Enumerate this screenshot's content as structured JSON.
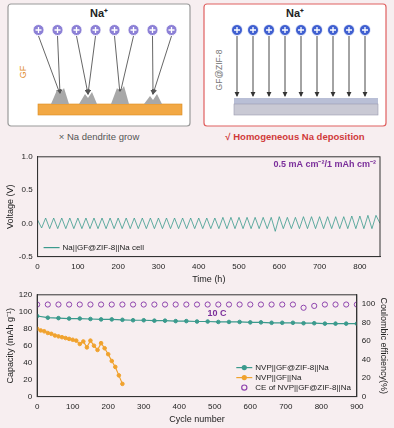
{
  "diagram": {
    "panels": [
      {
        "ion": "Na⁺",
        "substrate": "GF",
        "caption": "× Na dendrite grow"
      },
      {
        "ion": "Na⁺",
        "substrate": "GF@ZIF-8",
        "caption": "√ Homogeneous Na deposition"
      }
    ]
  },
  "chart_data": [
    {
      "type": "line",
      "xlabel": "Time (h)",
      "ylabel": "Voltage (V)",
      "annotation": "0.5 mA cm⁻²/1 mAh cm⁻²",
      "xlim": [
        0,
        850
      ],
      "xticks": [
        0,
        100,
        200,
        300,
        400,
        500,
        600,
        700,
        800
      ],
      "ylim": [
        -0.5,
        1
      ],
      "yticks": [
        -0.5,
        {
          "value": 0,
          "label": "0.0"
        },
        0.5,
        {
          "value": 1,
          "label": "1.0"
        }
      ],
      "grid": false,
      "legend": "lower left",
      "series": [
        {
          "name": "Na||GF@ZIF-8||Na cell",
          "color": "#3b9a8d",
          "marker": "none",
          "line_style": "solid",
          "x": [
            0,
            10,
            20,
            30,
            40,
            50,
            60,
            70,
            80,
            90,
            100,
            110,
            120,
            130,
            140,
            150,
            160,
            170,
            180,
            190,
            200,
            210,
            220,
            230,
            240,
            250,
            260,
            270,
            280,
            290,
            300,
            310,
            320,
            330,
            340,
            350,
            360,
            370,
            380,
            390,
            400,
            410,
            420,
            430,
            440,
            450,
            460,
            470,
            480,
            490,
            500,
            510,
            520,
            530,
            540,
            550,
            560,
            570,
            580,
            590,
            600,
            610,
            620,
            630,
            640,
            650,
            660,
            670,
            680,
            690,
            700,
            710,
            720,
            730,
            740,
            750,
            760,
            770,
            780,
            790,
            800,
            810,
            820,
            830,
            840,
            850
          ],
          "values": [
            0.05,
            -0.07,
            0.08,
            -0.08,
            0.08,
            -0.08,
            0.08,
            -0.08,
            0.08,
            -0.08,
            0.08,
            -0.08,
            0.08,
            -0.08,
            0.08,
            -0.08,
            0.08,
            -0.08,
            0.08,
            -0.08,
            0.08,
            -0.08,
            0.08,
            -0.08,
            0.08,
            -0.08,
            0.08,
            -0.08,
            0.08,
            -0.08,
            0.08,
            -0.08,
            0.08,
            -0.08,
            0.08,
            -0.08,
            0.08,
            -0.08,
            0.08,
            -0.08,
            0.08,
            -0.08,
            0.08,
            -0.08,
            0.08,
            -0.08,
            0.09,
            -0.08,
            0.09,
            -0.08,
            0.09,
            -0.08,
            0.09,
            -0.08,
            0.09,
            -0.08,
            0.09,
            -0.08,
            0.09,
            -0.12,
            0.1,
            -0.08,
            0.09,
            -0.08,
            0.09,
            -0.08,
            0.1,
            -0.08,
            0.1,
            -0.08,
            0.1,
            -0.08,
            0.1,
            -0.08,
            0.1,
            -0.08,
            0.1,
            -0.08,
            0.11,
            -0.08,
            0.11,
            -0.08,
            0.12,
            -0.08,
            0.12,
            0.0
          ]
        }
      ]
    },
    {
      "type": "line",
      "annotation": "10 C",
      "xlabel": "Cycle number",
      "ylabel": "Capacity (mAh g⁻¹)",
      "y2label": "Coulombic efficiency(%)",
      "xlim": [
        0,
        900
      ],
      "xticks": [
        0,
        100,
        200,
        300,
        400,
        500,
        600,
        700,
        800,
        900
      ],
      "ylim": [
        0,
        120
      ],
      "yticks": [
        0,
        20,
        40,
        60,
        80,
        100,
        120
      ],
      "y2lim": [
        0,
        110
      ],
      "y2ticks": [
        0,
        20,
        40,
        60,
        80,
        100
      ],
      "grid": false,
      "legend": "lower right",
      "series": [
        {
          "name": "NVP||GF@ZIF-8||Na",
          "color": "#3b9a8d",
          "marker": "circle",
          "line_style": "solid",
          "x": [
            0,
            30,
            60,
            90,
            120,
            150,
            180,
            210,
            240,
            270,
            300,
            330,
            360,
            390,
            420,
            450,
            480,
            510,
            540,
            570,
            600,
            630,
            660,
            690,
            720,
            750,
            780,
            810,
            840,
            870,
            900
          ],
          "values": [
            95,
            93,
            92.5,
            92,
            92,
            91.5,
            91,
            91,
            90.5,
            90,
            90,
            89.5,
            89.5,
            89,
            89,
            88.5,
            88.5,
            88,
            88,
            88,
            87.5,
            87.5,
            87,
            87,
            87,
            86.5,
            86.5,
            86,
            86,
            86,
            86
          ]
        },
        {
          "name": "NVP||GF||Na",
          "color": "#f0a22e",
          "marker": "circle",
          "line_style": "solid",
          "x": [
            0,
            10,
            20,
            30,
            40,
            50,
            60,
            70,
            80,
            90,
            100,
            110,
            120,
            130,
            140,
            150,
            160,
            170,
            180,
            190,
            200,
            210,
            220,
            230,
            240
          ],
          "values": [
            80,
            78,
            77,
            75,
            74,
            72,
            71,
            70,
            69,
            68,
            67,
            66,
            62,
            65,
            58,
            66,
            60,
            55,
            63,
            57,
            50,
            42,
            35,
            25,
            15
          ]
        },
        {
          "name": "CE of NVP||GF@ZIF-8||Na",
          "color": "#8e44ad",
          "type": "scatter",
          "marker": "open circle",
          "line_style": "none",
          "axis": "y2",
          "x": [
            0,
            30,
            60,
            90,
            120,
            150,
            180,
            210,
            240,
            270,
            300,
            330,
            360,
            390,
            420,
            450,
            480,
            510,
            540,
            570,
            600,
            630,
            660,
            690,
            720,
            750,
            780,
            810,
            840,
            870,
            900
          ],
          "values": [
            99.5,
            99.5,
            99.5,
            99.5,
            99.5,
            99.5,
            99.5,
            99.5,
            99.5,
            99.5,
            99.5,
            99.5,
            99.5,
            99.5,
            99.5,
            99.5,
            99.5,
            99.5,
            99.5,
            99.5,
            99.5,
            99.5,
            99.5,
            99.5,
            99.5,
            96,
            98,
            99.5,
            99.5,
            99.5,
            99.5
          ]
        }
      ]
    }
  ]
}
